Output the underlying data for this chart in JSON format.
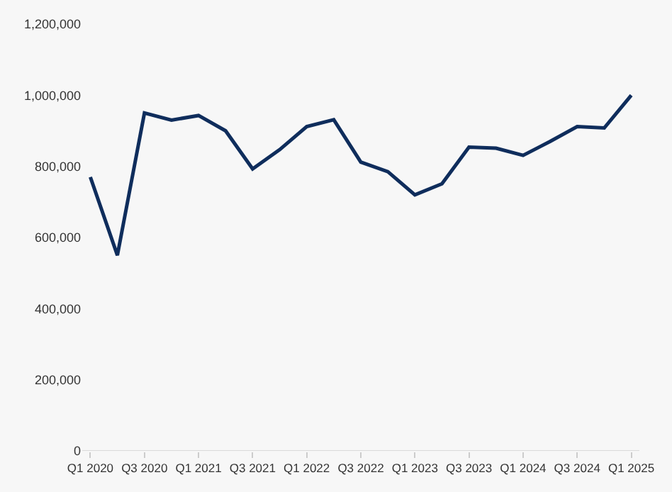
{
  "chart_data": {
    "type": "line",
    "categories": [
      "Q1 2020",
      null,
      "Q3 2020",
      null,
      "Q1 2021",
      null,
      "Q3 2021",
      null,
      "Q1 2022",
      null,
      "Q3 2022",
      null,
      "Q1 2023",
      null,
      "Q3 2023",
      null,
      "Q1 2024",
      null,
      "Q3 2024",
      null,
      "Q1 2025"
    ],
    "series": [
      {
        "color": "#0f2d5c",
        "values": [
          770000,
          550000,
          950000,
          930000,
          943000,
          900000,
          793000,
          847000,
          912000,
          931000,
          812000,
          785000,
          720000,
          751000,
          854000,
          851000,
          831000,
          870000,
          912000,
          908000,
          1000000
        ]
      }
    ],
    "ylim": [
      0,
      1200000
    ],
    "yticks": [
      {
        "value": 0,
        "label": "0"
      },
      {
        "value": 200000,
        "label": "200,000"
      },
      {
        "value": 400000,
        "label": "400,000"
      },
      {
        "value": 600000,
        "label": "600,000"
      },
      {
        "value": 800000,
        "label": "800,000"
      },
      {
        "value": 1000000,
        "label": "1,000,000"
      },
      {
        "value": 1200000,
        "label": "1,200,000"
      }
    ],
    "grid": false,
    "marker": "none",
    "line_style": "solid"
  }
}
